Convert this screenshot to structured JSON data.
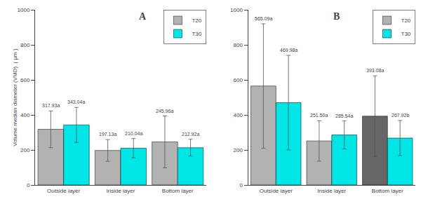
{
  "chart_data": [
    {
      "type": "bar",
      "title": "A",
      "categories": [
        "Outside layer",
        "Inside layer",
        "Bottom layer"
      ],
      "ylabel": "Volume median diameter (VMD)  ( μm )",
      "series": [
        {
          "name": "T20",
          "color": "#b2b2b2",
          "values": [
            317.93,
            197.13,
            245.96
          ],
          "errors": [
            105,
            62,
            148
          ],
          "value_labels": [
            "317.93a",
            "197.13a",
            "245.96a"
          ]
        },
        {
          "name": "T30",
          "color": "#00e5e5",
          "values": [
            343.04,
            210.04,
            212.92
          ],
          "errors": [
            100,
            55,
            48
          ],
          "value_labels": [
            "343.04a",
            "210.04a",
            "212.92a"
          ]
        }
      ],
      "ylim": [
        0,
        1000
      ],
      "yticks": [
        0,
        200,
        400,
        600,
        800,
        1000
      ],
      "grid": false,
      "legend": "upper right"
    },
    {
      "type": "bar",
      "title": "B",
      "categories": [
        "Outside layer",
        "Inside layer",
        "Bottom layer"
      ],
      "series": [
        {
          "name": "T20",
          "color": "#b2b2b2",
          "colors": [
            "#b2b2b2",
            "#b2b2b2",
            "#666666"
          ],
          "values": [
            565.09,
            251.5,
            393.08
          ],
          "errors": [
            355,
            115,
            230
          ],
          "value_labels": [
            "565.09a",
            "251.50a",
            "393.08a"
          ]
        },
        {
          "name": "T30",
          "color": "#00e5e5",
          "values": [
            469.98,
            285.54,
            267.92
          ],
          "errors": [
            270,
            80,
            100
          ],
          "value_labels": [
            "469.98a",
            "285.54a",
            "267.92b"
          ]
        }
      ],
      "ylim": [
        0,
        1000
      ],
      "yticks": [
        0,
        200,
        400,
        600,
        800,
        1000
      ],
      "grid": false,
      "legend": "upper right"
    }
  ]
}
